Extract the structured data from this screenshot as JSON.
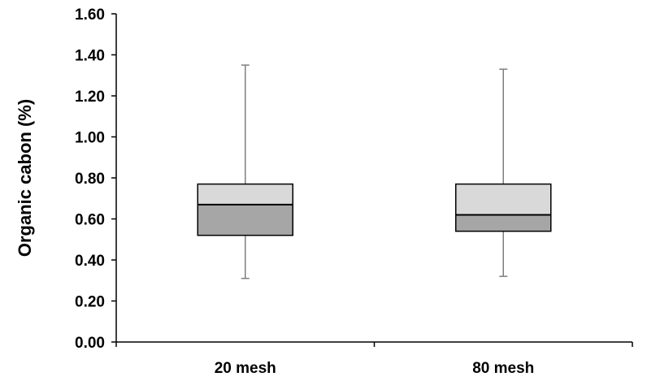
{
  "chart_data": {
    "type": "box",
    "title": "",
    "xlabel": "",
    "ylabel": "Organic cabon (%)",
    "ylim": [
      0,
      1.6
    ],
    "y_ticks": [
      "0.00",
      "0.20",
      "0.40",
      "0.60",
      "0.80",
      "1.00",
      "1.20",
      "1.40",
      "1.60"
    ],
    "categories": [
      "20 mesh",
      "80 mesh"
    ],
    "boxes": [
      {
        "category": "20 mesh",
        "min": 0.31,
        "q1": 0.52,
        "median": 0.67,
        "q3": 0.77,
        "max": 1.35
      },
      {
        "category": "80 mesh",
        "min": 0.32,
        "q1": 0.54,
        "median": 0.62,
        "q3": 0.77,
        "max": 1.33
      }
    ],
    "colors": {
      "lower_box": "#a6a6a6",
      "upper_box": "#d9d9d9",
      "whisker": "#7f7f7f",
      "axis": "#000000"
    },
    "grid": false,
    "legend": "none"
  }
}
